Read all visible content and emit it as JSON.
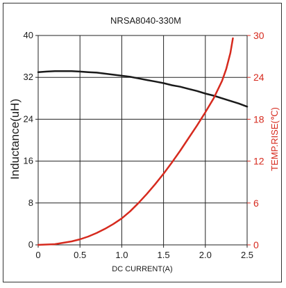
{
  "chart_data": {
    "type": "line",
    "title": "NRSA8040-330M",
    "xlabel": "DC CURRENT(A)",
    "ylabel_left": "Inductance(uH)",
    "ylabel_right": "TEMP.RISE(℃)",
    "xlim": [
      0,
      2.5
    ],
    "ylim_left": [
      0,
      40
    ],
    "ylim_right": [
      0,
      30
    ],
    "x_ticks": [
      "0",
      "0.5",
      "1.0",
      "1.5",
      "2.0",
      "2.5"
    ],
    "y_left_ticks": [
      "0",
      "8",
      "16",
      "24",
      "32",
      "40"
    ],
    "y_right_ticks": [
      "0",
      "6",
      "12",
      "18",
      "24",
      "30"
    ],
    "grid": true,
    "colors": {
      "inductance": "#1a1a1a",
      "temp_rise": "#d62a1e"
    },
    "series": [
      {
        "axis": "left",
        "x": [
          0,
          0.1,
          0.2,
          0.3,
          0.4,
          0.5,
          0.6,
          0.7,
          0.8,
          0.9,
          1.0,
          1.1,
          1.2,
          1.3,
          1.4,
          1.5,
          1.6,
          1.7,
          1.8,
          1.9,
          2.0,
          2.1,
          2.2,
          2.3,
          2.4,
          2.5
        ],
        "values": [
          33.0,
          33.1,
          33.2,
          33.2,
          33.2,
          33.1,
          33.0,
          32.9,
          32.7,
          32.5,
          32.3,
          32.1,
          31.8,
          31.5,
          31.2,
          30.9,
          30.5,
          30.2,
          29.8,
          29.4,
          28.9,
          28.5,
          28.0,
          27.5,
          27.0,
          26.4
        ]
      },
      {
        "axis": "right",
        "x": [
          0,
          0.1,
          0.2,
          0.3,
          0.4,
          0.5,
          0.6,
          0.7,
          0.8,
          0.9,
          1.0,
          1.1,
          1.2,
          1.3,
          1.4,
          1.5,
          1.6,
          1.7,
          1.8,
          1.9,
          2.0,
          2.1,
          2.2,
          2.25,
          2.3,
          2.33
        ],
        "values": [
          0,
          0.05,
          0.1,
          0.3,
          0.5,
          0.8,
          1.2,
          1.7,
          2.3,
          3.0,
          3.8,
          4.8,
          6.0,
          7.3,
          8.7,
          10.2,
          11.8,
          13.5,
          15.3,
          17.1,
          19.0,
          21.0,
          23.5,
          25.2,
          27.5,
          29.6
        ]
      }
    ]
  }
}
